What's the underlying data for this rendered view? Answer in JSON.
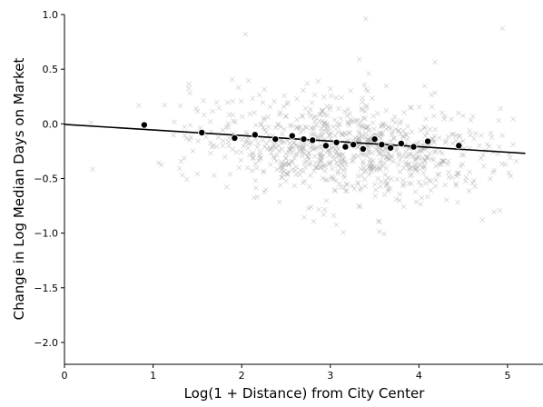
{
  "chart_data": {
    "type": "scatter",
    "title": "",
    "xlabel": "Log(1 + Distance) from City Center",
    "ylabel": "Change in Log Median Days on Market",
    "xlim": [
      0,
      5.4
    ],
    "ylim": [
      -2.2,
      1.0
    ],
    "x_ticks": [
      0,
      1,
      2,
      3,
      4,
      5
    ],
    "x_tick_labels": [
      "0",
      "1",
      "2",
      "3",
      "4",
      "5"
    ],
    "y_ticks": [
      1.0,
      0.5,
      0.0,
      -0.5,
      -1.0,
      -1.5,
      -2.0
    ],
    "y_tick_labels": [
      "1.0",
      "0.5",
      "0.0",
      "−0.5",
      "−1.0",
      "−1.5",
      "−2.0"
    ],
    "grid": false,
    "raw_points_marker": "x",
    "raw_points_color": "#9a9a9a",
    "binned_point_color": "#000000",
    "fit_line_color": "#000000",
    "binned_means": {
      "x": [
        0.9,
        1.55,
        1.92,
        2.15,
        2.38,
        2.57,
        2.7,
        2.8,
        2.95,
        3.07,
        3.17,
        3.26,
        3.37,
        3.5,
        3.58,
        3.68,
        3.8,
        3.94,
        4.1,
        4.45
      ],
      "y": [
        -0.01,
        -0.08,
        -0.13,
        -0.1,
        -0.14,
        -0.11,
        -0.14,
        -0.15,
        -0.2,
        -0.17,
        -0.21,
        -0.19,
        -0.23,
        -0.14,
        -0.19,
        -0.22,
        -0.18,
        -0.21,
        -0.16,
        -0.2
      ]
    },
    "fit_line": {
      "x": [
        0,
        5.2
      ],
      "y": [
        -0.005,
        -0.27
      ]
    }
  }
}
